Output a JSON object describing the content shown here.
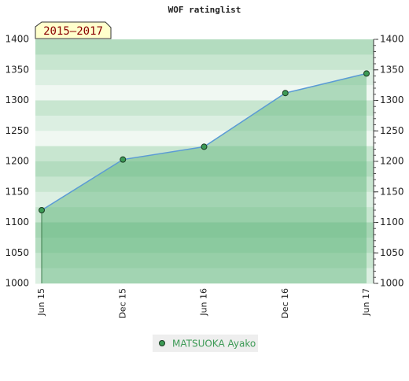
{
  "chart_data": {
    "type": "area",
    "title": "WOF ratinglist",
    "annotation": "2015–2017",
    "categories": [
      "Jun 15",
      "Dec 15",
      "Jun 16",
      "Dec 16",
      "Jun 17"
    ],
    "series": [
      {
        "name": "MATSUOKA Ayako",
        "color": "#5b9bd5",
        "values": [
          1120,
          1203,
          1224,
          1312,
          1344
        ]
      }
    ],
    "ylim": [
      1000,
      1400
    ],
    "yticks": [
      1000,
      1050,
      1100,
      1150,
      1200,
      1250,
      1300,
      1350,
      1400
    ],
    "y2lim": [
      1000,
      1400
    ],
    "y2ticks": [
      1000,
      1050,
      1100,
      1150,
      1200,
      1250,
      1300,
      1350,
      1400
    ],
    "grid": true,
    "legend": "bottom"
  }
}
